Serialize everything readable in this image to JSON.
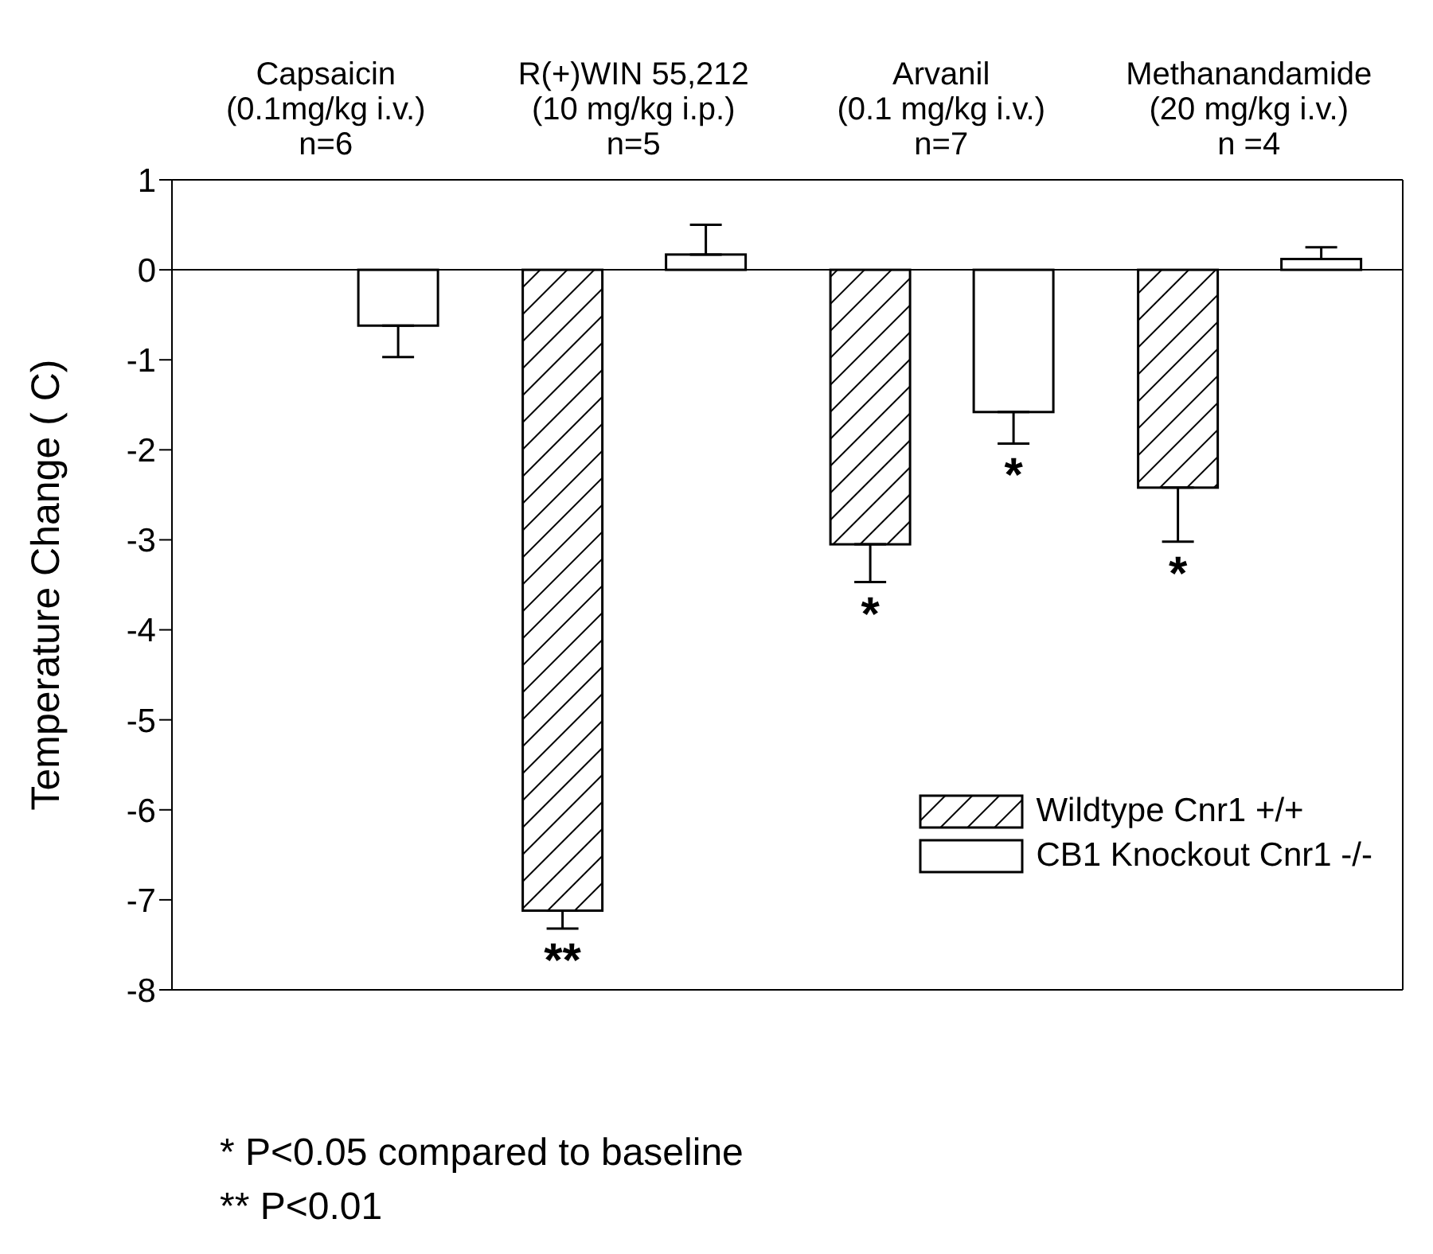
{
  "chart_data": {
    "type": "bar",
    "ylabel": "Temperature Change ( C)",
    "categories": [
      "Capsaicin\n(0.1mg/kg i.v.)\nn=6",
      "R(+)WIN 55,212\n(10 mg/kg i.p.)\nn=5",
      "Arvanil\n(0.1 mg/kg i.v.)\nn=7",
      "Methanandamide\n(20 mg/kg i.v.)\nn =4"
    ],
    "series": [
      {
        "name": "Wildtype Cnr1 +/+",
        "color": "#000000",
        "values": [
          null,
          -7.12,
          -3.05,
          -2.42
        ],
        "errors": [
          null,
          [
            -7.32,
            -7.12
          ],
          [
            -3.47,
            -3.05
          ],
          [
            -3.02,
            -2.42
          ]
        ],
        "value_labels": [
          null,
          "**",
          "*",
          "*"
        ]
      },
      {
        "name": "CB1 Knockout Cnr1 -/-",
        "color": "#ffffff",
        "values": [
          -0.62,
          0.17,
          -1.58,
          0.12
        ],
        "errors": [
          [
            -0.97,
            -0.62
          ],
          [
            0.17,
            0.5
          ],
          [
            -1.93,
            -1.58
          ],
          [
            0.12,
            0.25
          ]
        ],
        "value_labels": [
          null,
          null,
          "*",
          null
        ]
      }
    ],
    "ylim": [
      -8,
      1
    ],
    "yticks": [
      -8,
      -7,
      -6,
      -5,
      -4,
      -3,
      -2,
      -1,
      0,
      1
    ],
    "grid": false,
    "legend": "bottom right",
    "ref_lines": [
      {
        "axis": "y",
        "value": 0
      }
    ],
    "annotations": [
      "* P<0.05 compared to baseline",
      "** P<0.01"
    ]
  }
}
